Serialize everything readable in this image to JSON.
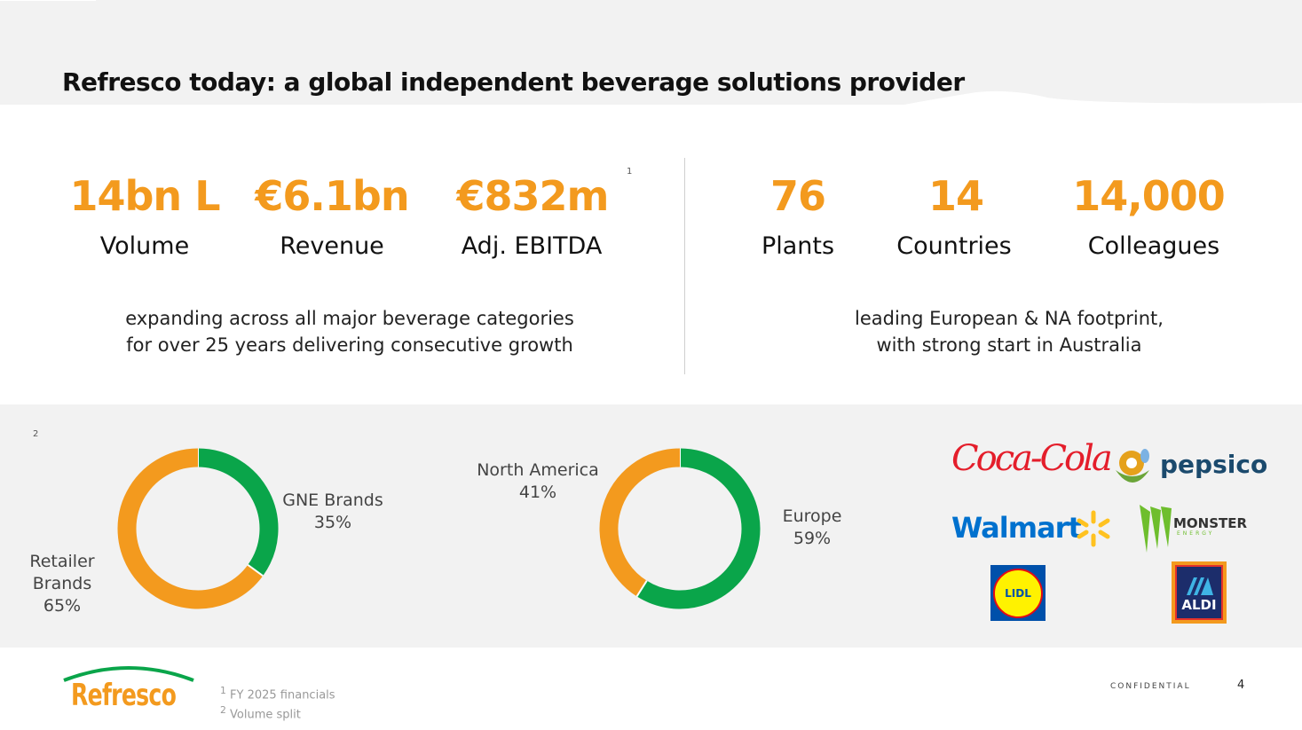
{
  "title": "Refresco today: a global independent beverage solutions provider",
  "kpis_left": [
    {
      "value": "14bn L",
      "label": "Volume"
    },
    {
      "value": "€6.1bn",
      "label": "Revenue"
    },
    {
      "value": "€832m",
      "label": "Adj. EBITDA",
      "footnote": "1"
    }
  ],
  "kpis_right": [
    {
      "value": "76",
      "label": "Plants"
    },
    {
      "value": "14",
      "label": "Countries"
    },
    {
      "value": "14,000",
      "label": "Colleagues"
    }
  ],
  "desc_left": [
    "expanding across all major beverage categories",
    "for over 25 years delivering consecutive growth"
  ],
  "desc_right": [
    "leading European & NA footprint,",
    "with strong start in Australia"
  ],
  "colors": {
    "orange": "#f39a1e",
    "green": "#0aa54a"
  },
  "chart_footnote": "2",
  "chart_data": [
    {
      "type": "pie",
      "donut": true,
      "slices": [
        {
          "name": "GNE Brands",
          "value": 35,
          "label": "35%",
          "color": "#0aa54a"
        },
        {
          "name": "Retailer Brands",
          "value": 65,
          "label": "65%",
          "color": "#f39a1e"
        }
      ]
    },
    {
      "type": "pie",
      "donut": true,
      "slices": [
        {
          "name": "Europe",
          "value": 59,
          "label": "59%",
          "color": "#0aa54a"
        },
        {
          "name": "North America",
          "value": 41,
          "label": "41%",
          "color": "#f39a1e"
        }
      ]
    }
  ],
  "customers": [
    "Coca-Cola",
    "pepsico",
    "Walmart",
    "MONSTER ENERGY",
    "LIDL",
    "ALDI"
  ],
  "footer": {
    "logo": "Refresco",
    "notes": [
      "FY 2025 financials",
      "Volume split"
    ],
    "confidential": "CONFIDENTIAL",
    "page": "4"
  }
}
